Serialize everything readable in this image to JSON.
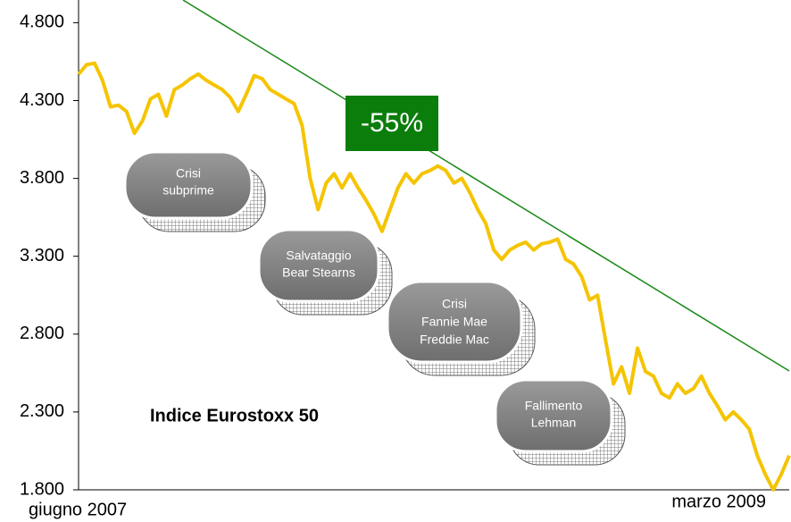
{
  "chart_data": {
    "type": "line",
    "categories": [
      "giugno 2007",
      null,
      null,
      null,
      null,
      null,
      null,
      null,
      null,
      null,
      null,
      null,
      null,
      null,
      null,
      null,
      null,
      null,
      null,
      null,
      null,
      null,
      null,
      null,
      null,
      null,
      null,
      null,
      null,
      null,
      null,
      null,
      null,
      null,
      null,
      null,
      null,
      null,
      null,
      null,
      null,
      null,
      null,
      null,
      null,
      null,
      null,
      null,
      null,
      null,
      null,
      null,
      null,
      null,
      null,
      null,
      null,
      null,
      null,
      null,
      null,
      null,
      null,
      null,
      null,
      null,
      null,
      null,
      null,
      null,
      null,
      null,
      null,
      null,
      null,
      null,
      null,
      null,
      null,
      null,
      null,
      null,
      null,
      null,
      null,
      null,
      null,
      null,
      null,
      "marzo 2009"
    ],
    "series": [
      {
        "name": "Indice Eurostoxx  50",
        "color": "#f5c400",
        "values": [
          4470,
          4530,
          4540,
          4430,
          4260,
          4270,
          4230,
          4090,
          4170,
          4310,
          4340,
          4200,
          4370,
          4400,
          4440,
          4470,
          4430,
          4400,
          4370,
          4320,
          4230,
          4340,
          4460,
          4440,
          4370,
          4340,
          4310,
          4280,
          4140,
          3800,
          3600,
          3770,
          3830,
          3740,
          3830,
          3740,
          3660,
          3570,
          3460,
          3600,
          3740,
          3830,
          3770,
          3830,
          3850,
          3880,
          3850,
          3770,
          3800,
          3710,
          3600,
          3510,
          3340,
          3280,
          3340,
          3370,
          3390,
          3340,
          3380,
          3390,
          3410,
          3280,
          3250,
          3170,
          3020,
          3050,
          2760,
          2480,
          2590,
          2420,
          2710,
          2560,
          2530,
          2420,
          2390,
          2480,
          2420,
          2450,
          2530,
          2420,
          2340,
          2250,
          2300,
          2250,
          2190,
          2020,
          1900,
          1800,
          1900,
          2020
        ]
      }
    ],
    "ylim": [
      1800,
      4900
    ],
    "yticks": [
      {
        "value": 1800,
        "label": "1.800"
      },
      {
        "value": 2300,
        "label": "2.300"
      },
      {
        "value": 2800,
        "label": "2.800"
      },
      {
        "value": 3300,
        "label": "3.300"
      },
      {
        "value": 3800,
        "label": "3.800"
      },
      {
        "value": 4300,
        "label": "4.300"
      },
      {
        "value": 4800,
        "label": "4.800"
      }
    ],
    "annotations": [
      "-55%",
      "Crisi",
      "subprime",
      "Salvataggio",
      "Bear Stearns",
      "Crisi",
      "Fannie Mae",
      "Freddie Mac",
      "Fallimento",
      "Lehman"
    ]
  }
}
